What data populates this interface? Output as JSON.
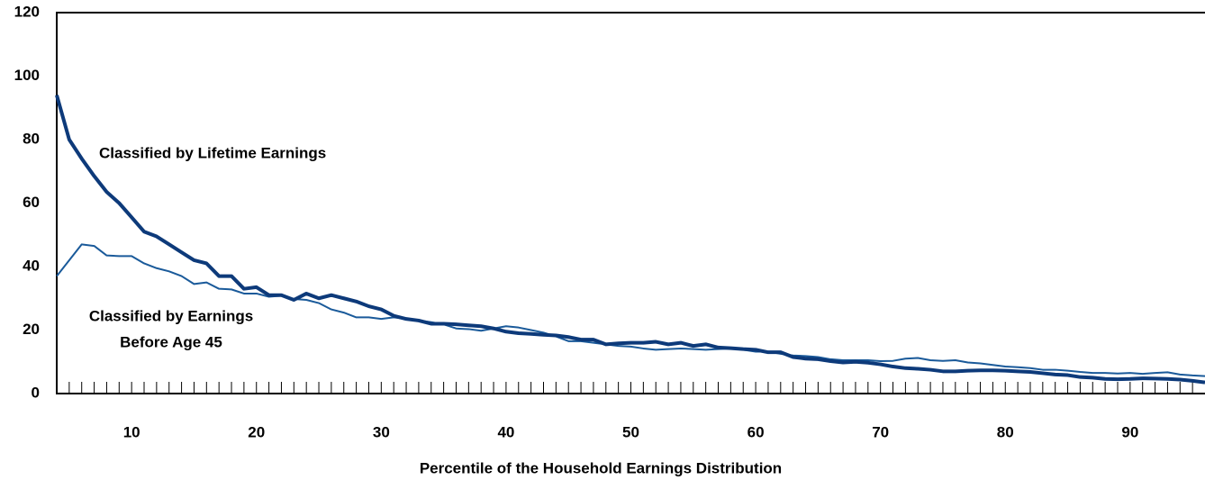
{
  "chart_data": {
    "type": "line",
    "x_label": "Percentile of the Household Earnings Distribution",
    "annotations": [
      {
        "text": "Classified by Lifetime Earnings"
      },
      {
        "lines": [
          "Classified by Earnings",
          "Before Age 45"
        ]
      }
    ],
    "x": [
      4,
      5,
      6,
      7,
      8,
      9,
      10,
      11,
      12,
      13,
      14,
      15,
      16,
      17,
      18,
      19,
      20,
      21,
      22,
      23,
      24,
      25,
      26,
      27,
      28,
      29,
      30,
      31,
      32,
      33,
      34,
      35,
      36,
      37,
      38,
      39,
      40,
      41,
      42,
      43,
      44,
      45,
      46,
      47,
      48,
      49,
      50,
      51,
      52,
      53,
      54,
      55,
      56,
      57,
      58,
      59,
      60,
      61,
      62,
      63,
      64,
      65,
      66,
      67,
      68,
      69,
      70,
      71,
      72,
      73,
      74,
      75,
      76,
      77,
      78,
      79,
      80,
      81,
      82,
      83,
      84,
      85,
      86,
      87,
      88,
      89,
      90,
      91,
      92,
      93,
      94,
      95,
      96
    ],
    "series": [
      {
        "color": "#0d3a7a",
        "width": 4,
        "values": [
          94,
          80,
          74,
          68.5,
          63.5,
          60,
          55.5,
          51,
          49.5,
          47,
          44.5,
          42,
          41,
          37,
          37,
          33,
          33.5,
          31,
          31,
          29.5,
          31.5,
          30,
          31,
          30,
          29,
          27.5,
          26.5,
          24.5,
          23.5,
          23,
          22,
          22,
          21.8,
          21.5,
          21.2,
          20.5,
          19.5,
          19,
          18.8,
          18.5,
          18.3,
          17.8,
          17,
          17,
          15.5,
          15.8,
          16,
          16,
          16.3,
          15.5,
          16,
          15,
          15.5,
          14.5,
          14.3,
          14,
          13.8,
          13,
          13,
          11.5,
          11,
          10.8,
          10.2,
          9.8,
          10,
          9.7,
          9.2,
          8.5,
          8,
          7.8,
          7.5,
          7,
          7,
          7.2,
          7.3,
          7.3,
          7.2,
          7,
          6.8,
          6.4,
          6,
          5.8,
          5.2,
          5,
          4.6,
          4.5,
          4.6,
          4.8,
          4.7,
          4.6,
          4.4,
          4,
          3.5
        ]
      },
      {
        "color": "#1a5a9a",
        "width": 2,
        "values": [
          37,
          42,
          47,
          46.5,
          43.5,
          43.3,
          43.3,
          41,
          39.5,
          38.5,
          37,
          34.5,
          35,
          33,
          32.8,
          31.5,
          31.5,
          30.5,
          30.8,
          29.8,
          29.5,
          28.5,
          26.5,
          25.5,
          24,
          24,
          23.5,
          24,
          23.5,
          23,
          22.5,
          21.8,
          20.5,
          20.3,
          19.8,
          20.5,
          21.2,
          20.8,
          20,
          19.2,
          18,
          16.5,
          16.5,
          16,
          15.5,
          15,
          14.8,
          14.2,
          13.8,
          14,
          14.2,
          14,
          13.8,
          14,
          14.2,
          13.8,
          13.2,
          13.2,
          12.5,
          12,
          11.8,
          11.5,
          10.8,
          10.5,
          10.5,
          10.5,
          10.2,
          10.3,
          11,
          11.2,
          10.5,
          10.3,
          10.5,
          9.8,
          9.5,
          9,
          8.5,
          8.3,
          8,
          7.5,
          7.5,
          7.2,
          6.8,
          6.5,
          6.5,
          6.3,
          6.5,
          6.2,
          6.5,
          6.7,
          6,
          5.7,
          5.5
        ]
      }
    ],
    "xlim": [
      4,
      96
    ],
    "xticks": [
      10,
      20,
      30,
      40,
      50,
      60,
      70,
      80,
      90
    ],
    "xminorticks": [
      5,
      6,
      7,
      8,
      9,
      10,
      11,
      12,
      13,
      14,
      15,
      16,
      17,
      18,
      19,
      20,
      21,
      22,
      23,
      24,
      25,
      26,
      27,
      28,
      29,
      30,
      31,
      32,
      33,
      34,
      35,
      36,
      37,
      38,
      39,
      40,
      41,
      42,
      43,
      44,
      45,
      46,
      47,
      48,
      49,
      50,
      51,
      52,
      53,
      54,
      55,
      56,
      57,
      58,
      59,
      60,
      61,
      62,
      63,
      64,
      65,
      66,
      67,
      68,
      69,
      70,
      71,
      72,
      73,
      74,
      75,
      76,
      77,
      78,
      79,
      80,
      81,
      82,
      83,
      84,
      85,
      86,
      87,
      88,
      89,
      90,
      91,
      92,
      93,
      94,
      95
    ],
    "ylim": [
      0,
      120
    ],
    "yticks": [
      0,
      20,
      40,
      60,
      80,
      100,
      120
    ],
    "grid": false
  }
}
